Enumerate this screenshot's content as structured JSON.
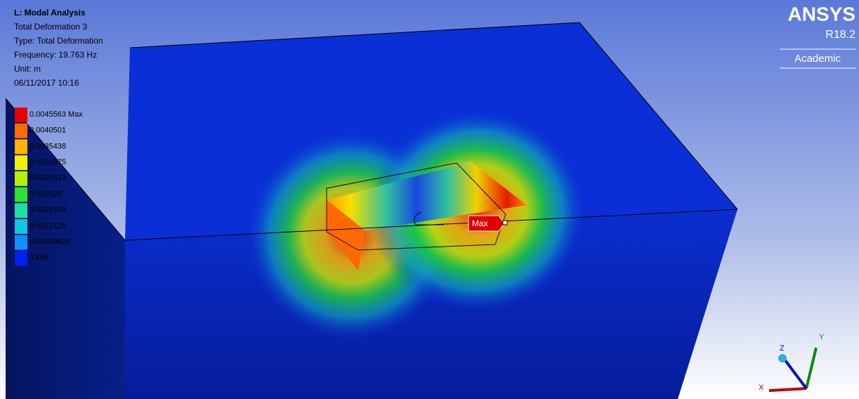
{
  "header": {
    "title": "L: Modal Analysis",
    "lines": [
      "Total Deformation 3",
      "Type: Total Deformation",
      "Frequency: 19.763 Hz",
      "Unit: m",
      "06/11/2017 10:16"
    ]
  },
  "legend": {
    "labels": [
      "0.0045563 Max",
      "0.0040501",
      "0.0035438",
      "0.0030375",
      "0.0025313",
      "0.002025",
      "0.0015188",
      "0.0010125",
      "0.00050626",
      "0 Min"
    ]
  },
  "logo": {
    "brand": "ANSYS",
    "version": "R18.2",
    "edition": "Academic"
  },
  "probe": {
    "label": "Max"
  },
  "triad": {
    "x": "X",
    "y": "Y",
    "z": "Z"
  }
}
